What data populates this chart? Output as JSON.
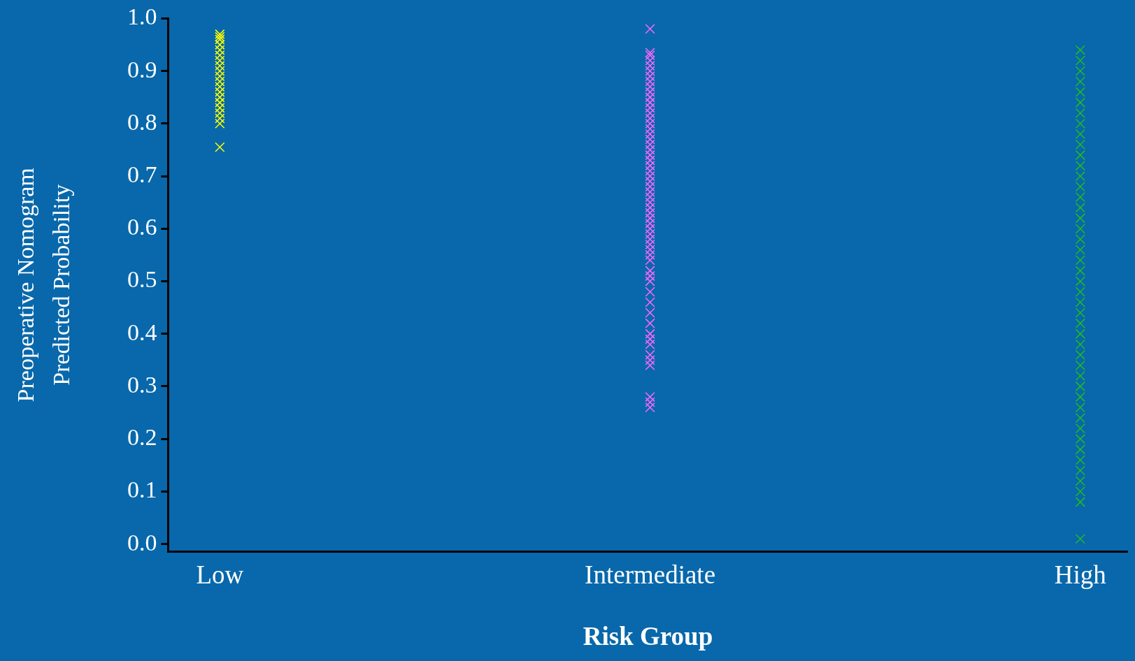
{
  "chart_data": {
    "type": "scatter",
    "xlabel": "Risk Group",
    "ylabel": "Preoperative Nomogram\nPredicted Probability",
    "categories": [
      "Low",
      "Intermediate",
      "High"
    ],
    "ylim": [
      -0.014,
      1.0
    ],
    "yticks": [
      {
        "value": 0,
        "label": "0.0"
      },
      0.1,
      0.2,
      0.3,
      0.4,
      0.5,
      0.6,
      0.7,
      0.8,
      0.9,
      {
        "value": 1,
        "label": "1.0"
      }
    ],
    "grid": false,
    "legend": false,
    "marker": "cross",
    "series": [
      {
        "color": "#ffff00",
        "x": [
          "Low",
          "Low",
          "Low",
          "Low",
          "Low",
          "Low",
          "Low",
          "Low",
          "Low",
          "Low",
          "Low",
          "Low",
          "Low",
          "Low",
          "Low",
          "Low",
          "Low",
          "Low",
          "Low",
          "Low"
        ],
        "values": [
          0.97,
          0.965,
          0.96,
          0.95,
          0.94,
          0.93,
          0.92,
          0.91,
          0.9,
          0.89,
          0.88,
          0.87,
          0.86,
          0.85,
          0.84,
          0.83,
          0.82,
          0.81,
          0.8,
          0.755
        ]
      },
      {
        "color": "#ff66ff",
        "x": [
          "Intermediate",
          "Intermediate",
          "Intermediate",
          "Intermediate",
          "Intermediate",
          "Intermediate",
          "Intermediate",
          "Intermediate",
          "Intermediate",
          "Intermediate",
          "Intermediate",
          "Intermediate",
          "Intermediate",
          "Intermediate",
          "Intermediate",
          "Intermediate",
          "Intermediate",
          "Intermediate",
          "Intermediate",
          "Intermediate",
          "Intermediate",
          "Intermediate",
          "Intermediate",
          "Intermediate",
          "Intermediate",
          "Intermediate",
          "Intermediate",
          "Intermediate",
          "Intermediate",
          "Intermediate",
          "Intermediate",
          "Intermediate",
          "Intermediate",
          "Intermediate",
          "Intermediate",
          "Intermediate",
          "Intermediate",
          "Intermediate",
          "Intermediate",
          "Intermediate",
          "Intermediate",
          "Intermediate",
          "Intermediate",
          "Intermediate",
          "Intermediate",
          "Intermediate",
          "Intermediate",
          "Intermediate",
          "Intermediate",
          "Intermediate",
          "Intermediate",
          "Intermediate",
          "Intermediate",
          "Intermediate",
          "Intermediate",
          "Intermediate",
          "Intermediate",
          "Intermediate"
        ],
        "values": [
          0.98,
          0.935,
          0.93,
          0.92,
          0.91,
          0.9,
          0.89,
          0.88,
          0.87,
          0.86,
          0.85,
          0.84,
          0.83,
          0.82,
          0.81,
          0.8,
          0.79,
          0.78,
          0.77,
          0.76,
          0.75,
          0.74,
          0.73,
          0.72,
          0.71,
          0.7,
          0.69,
          0.68,
          0.67,
          0.66,
          0.65,
          0.64,
          0.63,
          0.62,
          0.61,
          0.6,
          0.59,
          0.58,
          0.57,
          0.56,
          0.55,
          0.54,
          0.52,
          0.51,
          0.5,
          0.48,
          0.46,
          0.44,
          0.42,
          0.4,
          0.39,
          0.38,
          0.36,
          0.35,
          0.34,
          0.28,
          0.27,
          0.26
        ]
      },
      {
        "color": "#22bb22",
        "x": [
          "High",
          "High",
          "High",
          "High",
          "High",
          "High",
          "High",
          "High",
          "High",
          "High",
          "High",
          "High",
          "High",
          "High",
          "High",
          "High",
          "High",
          "High",
          "High",
          "High",
          "High",
          "High",
          "High",
          "High",
          "High",
          "High",
          "High",
          "High",
          "High",
          "High",
          "High",
          "High",
          "High",
          "High",
          "High",
          "High",
          "High",
          "High",
          "High",
          "High",
          "High",
          "High",
          "High",
          "High",
          "High"
        ],
        "values": [
          0.94,
          0.92,
          0.9,
          0.88,
          0.86,
          0.84,
          0.82,
          0.8,
          0.78,
          0.76,
          0.74,
          0.72,
          0.7,
          0.68,
          0.66,
          0.64,
          0.62,
          0.6,
          0.58,
          0.56,
          0.54,
          0.52,
          0.5,
          0.48,
          0.46,
          0.44,
          0.42,
          0.4,
          0.38,
          0.36,
          0.34,
          0.32,
          0.3,
          0.28,
          0.26,
          0.24,
          0.22,
          0.2,
          0.18,
          0.16,
          0.14,
          0.12,
          0.1,
          0.08,
          0.01
        ]
      }
    ]
  }
}
